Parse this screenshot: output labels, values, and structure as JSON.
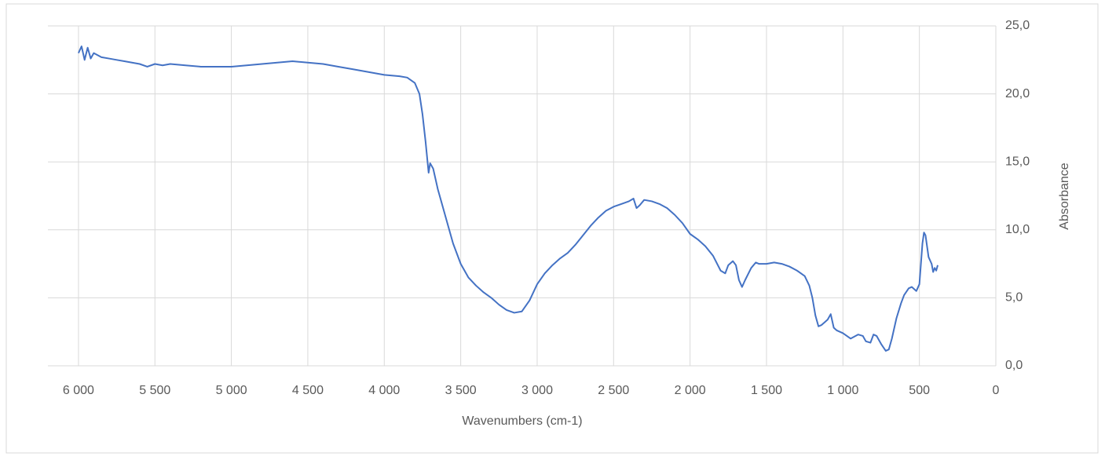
{
  "chart_data": {
    "type": "line",
    "x_label": "Wavenumbers (cm-1)",
    "y_label": "Absorbance",
    "xlim": [
      6200,
      0
    ],
    "ylim": [
      0,
      25
    ],
    "xticks": [
      {
        "value": 6000,
        "label": "6 000"
      },
      {
        "value": 5500,
        "label": "5 500"
      },
      {
        "value": 5000,
        "label": "5 000"
      },
      {
        "value": 4500,
        "label": "4 500"
      },
      {
        "value": 4000,
        "label": "4 000"
      },
      {
        "value": 3500,
        "label": "3 500"
      },
      {
        "value": 3000,
        "label": "3 000"
      },
      {
        "value": 2500,
        "label": "2 500"
      },
      {
        "value": 2000,
        "label": "2 000"
      },
      {
        "value": 1500,
        "label": "1 500"
      },
      {
        "value": 1000,
        "label": "1 000"
      },
      500,
      0
    ],
    "yticks": [
      {
        "value": 0,
        "label": "0,0"
      },
      {
        "value": 5,
        "label": "5,0"
      },
      {
        "value": 10,
        "label": "10,0"
      },
      {
        "value": 15,
        "label": "15,0"
      },
      {
        "value": 20,
        "label": "20,0"
      },
      {
        "value": 25,
        "label": "25,0"
      }
    ],
    "grid": true,
    "series": [
      {
        "color": "#4472c4",
        "x": [
          6000,
          5980,
          5960,
          5940,
          5920,
          5900,
          5850,
          5800,
          5750,
          5700,
          5650,
          5600,
          5550,
          5500,
          5450,
          5400,
          5300,
          5200,
          5100,
          5000,
          4900,
          4800,
          4700,
          4600,
          4500,
          4400,
          4300,
          4200,
          4100,
          4000,
          3900,
          3850,
          3800,
          3770,
          3750,
          3730,
          3710,
          3700,
          3680,
          3650,
          3600,
          3550,
          3500,
          3450,
          3400,
          3350,
          3300,
          3250,
          3200,
          3150,
          3100,
          3050,
          3000,
          2950,
          2900,
          2850,
          2800,
          2750,
          2700,
          2650,
          2600,
          2550,
          2500,
          2450,
          2400,
          2370,
          2350,
          2330,
          2300,
          2250,
          2200,
          2150,
          2100,
          2050,
          2000,
          1950,
          1900,
          1850,
          1800,
          1770,
          1750,
          1720,
          1700,
          1680,
          1660,
          1640,
          1600,
          1570,
          1550,
          1500,
          1450,
          1400,
          1350,
          1300,
          1250,
          1220,
          1200,
          1180,
          1160,
          1140,
          1120,
          1100,
          1080,
          1060,
          1040,
          1000,
          950,
          900,
          870,
          850,
          820,
          800,
          780,
          750,
          720,
          700,
          680,
          650,
          620,
          600,
          570,
          550,
          520,
          500,
          480,
          470,
          460,
          440,
          420,
          410,
          400,
          390,
          380
        ],
        "values": [
          23.0,
          23.5,
          22.5,
          23.4,
          22.6,
          23.0,
          22.7,
          22.6,
          22.5,
          22.4,
          22.3,
          22.2,
          22.0,
          22.2,
          22.1,
          22.2,
          22.1,
          22.0,
          22.0,
          22.0,
          22.1,
          22.2,
          22.3,
          22.4,
          22.3,
          22.2,
          22.0,
          21.8,
          21.6,
          21.4,
          21.3,
          21.2,
          20.8,
          20.0,
          18.5,
          16.5,
          14.2,
          14.9,
          14.5,
          13.0,
          11.0,
          9.0,
          7.5,
          6.5,
          5.9,
          5.4,
          5.0,
          4.5,
          4.1,
          3.9,
          4.0,
          4.8,
          6.0,
          6.8,
          7.4,
          7.9,
          8.3,
          8.9,
          9.6,
          10.3,
          10.9,
          11.4,
          11.7,
          11.9,
          12.1,
          12.3,
          11.6,
          11.8,
          12.2,
          12.1,
          11.9,
          11.6,
          11.1,
          10.5,
          9.7,
          9.3,
          8.8,
          8.1,
          7.0,
          6.8,
          7.4,
          7.7,
          7.4,
          6.3,
          5.8,
          6.3,
          7.2,
          7.6,
          7.5,
          7.5,
          7.6,
          7.5,
          7.3,
          7.0,
          6.6,
          5.9,
          5.0,
          3.7,
          2.9,
          3.0,
          3.2,
          3.4,
          3.8,
          2.8,
          2.6,
          2.4,
          2.0,
          2.3,
          2.2,
          1.8,
          1.7,
          2.3,
          2.2,
          1.6,
          1.1,
          1.2,
          2.0,
          3.5,
          4.6,
          5.2,
          5.7,
          5.8,
          5.5,
          6.0,
          9.0,
          9.8,
          9.6,
          8.0,
          7.5,
          6.9,
          7.2,
          7.0,
          7.4
        ]
      }
    ]
  }
}
